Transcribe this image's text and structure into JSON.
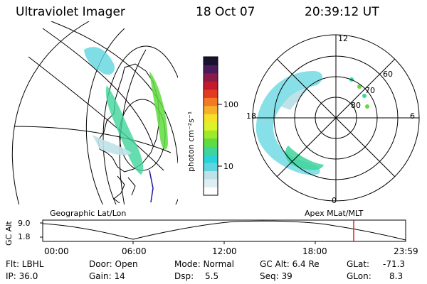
{
  "header": {
    "instrument": "Ultraviolet Imager",
    "date": "18 Oct 07",
    "time": "20:39:12 UT"
  },
  "colorbar": {
    "unit_label": "photon cm⁻²s⁻¹",
    "ticks": [
      "100",
      "10"
    ],
    "scale": "log",
    "colors": [
      "#ffffff",
      "#dfeef2",
      "#bfe2e8",
      "#5fd6df",
      "#2ad2d8",
      "#3fd49a",
      "#5fdc3f",
      "#9fe82a",
      "#ddf22a",
      "#f5e02a",
      "#f7b02a",
      "#f27a22",
      "#e03a22",
      "#c21a2a",
      "#8a1a4a",
      "#4a1a5a",
      "#1a1030"
    ]
  },
  "polar_plot": {
    "ring_labels": [
      "60",
      "70",
      "80"
    ],
    "mlt_labels": [
      "12",
      "18",
      "6",
      "0"
    ]
  },
  "altitude_plot": {
    "left_label": "Geographic Lat/Lon",
    "right_label": "Apex MLat/MLT",
    "y_axis_label": "GC Alt",
    "y_ticks": [
      "9.0",
      "1.8"
    ],
    "x_ticks": [
      "00:00",
      "06:00",
      "12:00",
      "18:00",
      "23:59"
    ],
    "current_marker_color": "#e02020"
  },
  "status": {
    "filter": "Flt: LBHL",
    "door": "Door: Open",
    "mode": "Mode: Normal",
    "gc_alt": "GC Alt: 6.4 Re",
    "glat_label": "GLat:",
    "glat_value": "-71.3",
    "ip": "IP: 36.0",
    "gain": "Gain: 14",
    "dsp_label": "Dsp:",
    "dsp_value": "5.5",
    "seq": "Seq: 39",
    "glon_label": "GLon:",
    "glon_value": "8.3"
  }
}
